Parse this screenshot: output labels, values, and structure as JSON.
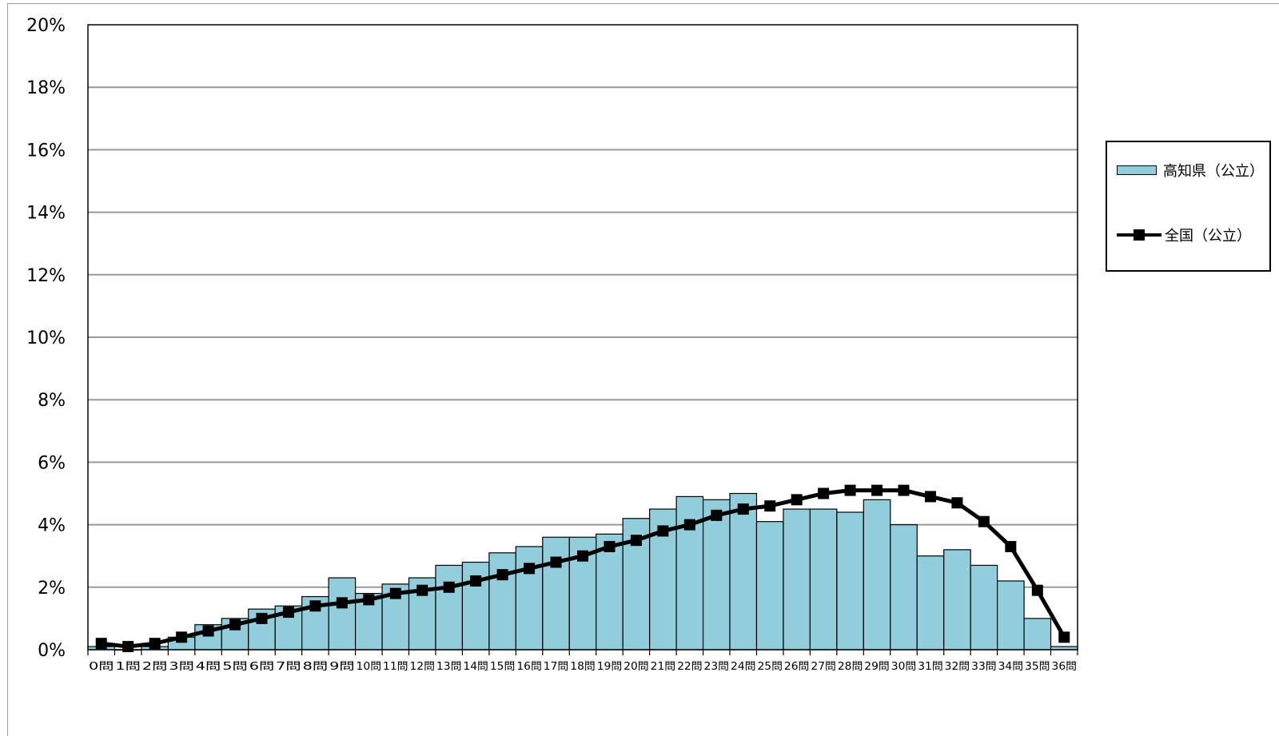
{
  "chart_data": {
    "type": "bar",
    "categories": [
      "0問",
      "1問",
      "2問",
      "3問",
      "4問",
      "5問",
      "6問",
      "7問",
      "8問",
      "9問",
      "10問",
      "11問",
      "12問",
      "13問",
      "14問",
      "15問",
      "16問",
      "17問",
      "18問",
      "19問",
      "20問",
      "21問",
      "22問",
      "23問",
      "24問",
      "25問",
      "26問",
      "27問",
      "28問",
      "29問",
      "30問",
      "31問",
      "32問",
      "33問",
      "34問",
      "35問",
      "36問"
    ],
    "series": [
      {
        "name": "高知県（公立）",
        "type": "bar",
        "color": "#92cddc",
        "values": [
          0.1,
          0.0,
          0.1,
          0.4,
          0.8,
          1.0,
          1.3,
          1.4,
          1.7,
          2.3,
          1.8,
          2.1,
          2.3,
          2.7,
          2.8,
          3.1,
          3.3,
          3.6,
          3.6,
          3.7,
          4.2,
          4.5,
          4.9,
          4.8,
          5.0,
          4.1,
          4.5,
          4.5,
          4.4,
          4.8,
          4.0,
          3.0,
          3.2,
          2.7,
          2.2,
          1.0,
          0.1
        ]
      },
      {
        "name": "全国（公立）",
        "type": "line",
        "color": "#000000",
        "values": [
          0.2,
          0.1,
          0.2,
          0.4,
          0.6,
          0.8,
          1.0,
          1.2,
          1.4,
          1.5,
          1.6,
          1.8,
          1.9,
          2.0,
          2.2,
          2.4,
          2.6,
          2.8,
          3.0,
          3.3,
          3.5,
          3.8,
          4.0,
          4.3,
          4.5,
          4.6,
          4.8,
          5.0,
          5.1,
          5.1,
          5.1,
          4.9,
          4.7,
          4.1,
          3.3,
          1.9,
          0.4
        ]
      }
    ],
    "yticks": [
      "0%",
      "2%",
      "4%",
      "6%",
      "8%",
      "10%",
      "12%",
      "14%",
      "16%",
      "18%",
      "20%"
    ],
    "ylim": [
      0,
      20
    ],
    "grid": true,
    "legend_position": "right"
  }
}
